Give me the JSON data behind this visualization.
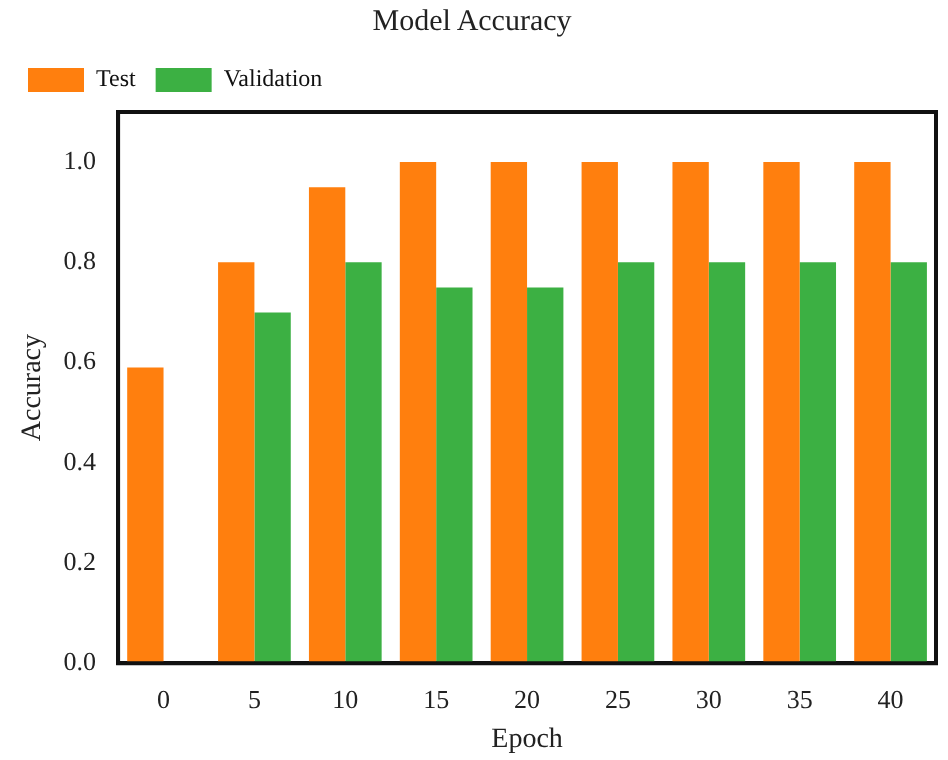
{
  "chart_data": {
    "type": "bar",
    "title": "Model Accuracy",
    "xlabel": "Epoch",
    "ylabel": "Accuracy",
    "categories": [
      "0",
      "5",
      "10",
      "15",
      "20",
      "25",
      "30",
      "35",
      "40"
    ],
    "series": [
      {
        "name": "Test",
        "color": "#ff7f0e",
        "values": [
          0.59,
          0.8,
          0.95,
          1.0,
          1.0,
          1.0,
          1.0,
          1.0,
          1.0
        ]
      },
      {
        "name": "Validation",
        "color": "#3cb043",
        "values": [
          null,
          0.7,
          0.8,
          0.75,
          0.75,
          0.8,
          0.8,
          0.8,
          0.8
        ]
      }
    ],
    "ylim": [
      0,
      1.1
    ],
    "yticks": [
      {
        "value": 0,
        "label": "0.0"
      },
      {
        "value": 0.2,
        "label": "0.2"
      },
      {
        "value": 0.4,
        "label": "0.4"
      },
      {
        "value": 0.6,
        "label": "0.6"
      },
      {
        "value": 0.8,
        "label": "0.8"
      },
      {
        "value": 1,
        "label": "1.0"
      }
    ],
    "grid": false,
    "legend": "top left"
  }
}
